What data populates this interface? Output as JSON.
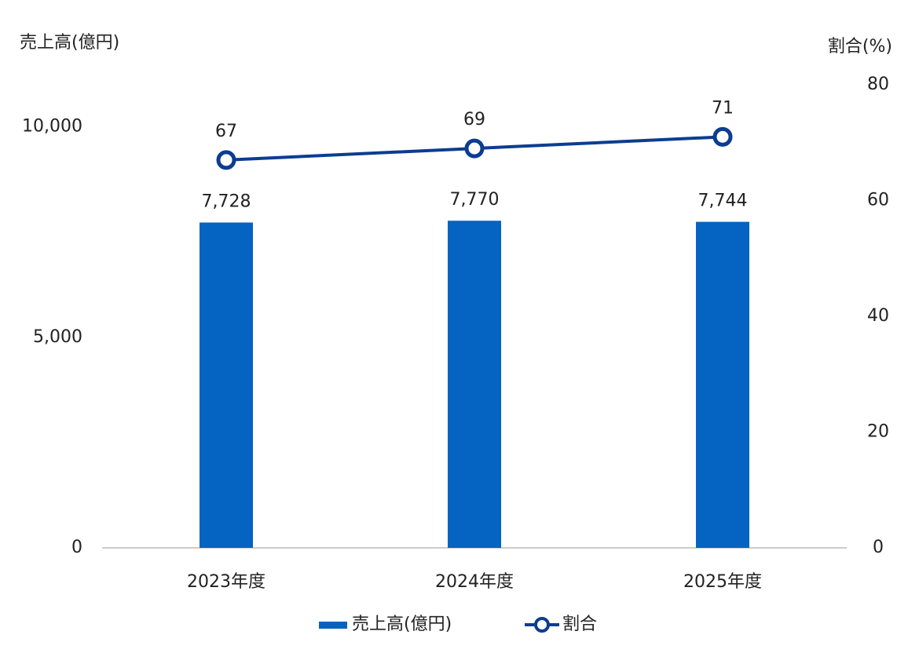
{
  "chart_data": {
    "type": "combo",
    "ylabel": "売上高(億円)",
    "y2label": "割合(%)",
    "categories": [
      "2023年度",
      "2024年度",
      "2025年度"
    ],
    "series": [
      {
        "name": "売上高(億円)",
        "type": "bar",
        "color": "#0563c1",
        "values": [
          7728,
          7770,
          7744
        ],
        "value_labels": [
          "7,728",
          "7,770",
          "7,744"
        ]
      },
      {
        "name": "割合",
        "type": "line",
        "axis": "y2",
        "color": "#0b3d91",
        "values": [
          67,
          69,
          71
        ]
      }
    ],
    "ylim": [
      0,
      11000
    ],
    "yticks": [
      0,
      {
        "value": 5000,
        "label": "5,000"
      },
      {
        "value": 10000,
        "label": "10,000"
      }
    ],
    "y2lim": [
      0,
      80
    ],
    "y2ticks": [
      0,
      20,
      40,
      60,
      80
    ],
    "grid": false
  }
}
